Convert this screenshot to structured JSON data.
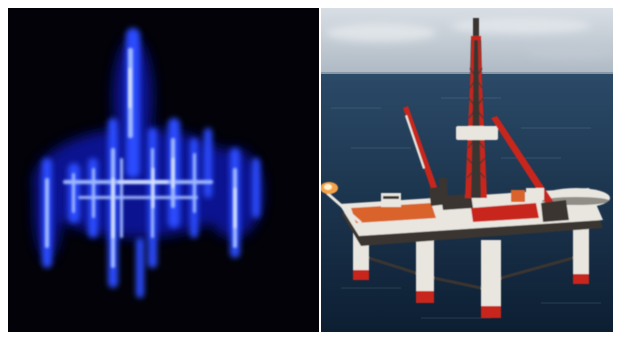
{
  "figure": {
    "panels": [
      {
        "id": "left",
        "depiction": "radar-blob",
        "colors": {
          "background": "#020208",
          "glow_deep": "#0a12a8",
          "glow_mid": "#2a4bff",
          "glow_bright": "#9fb8ff",
          "core": "#e8eeff"
        }
      },
      {
        "id": "right",
        "depiction": "oil-rig",
        "colors": {
          "sky_top": "#d8dee4",
          "sky_bottom": "#aeb9c4",
          "horizon": "#8897a6",
          "sea_top": "#2b4a68",
          "sea_bottom": "#0c1e32",
          "rig_white": "#e9e6df",
          "rig_red": "#c8271f",
          "rig_orange": "#d9632a",
          "rig_dark": "#3a3530",
          "flare": "#f4a24a"
        }
      }
    ]
  }
}
